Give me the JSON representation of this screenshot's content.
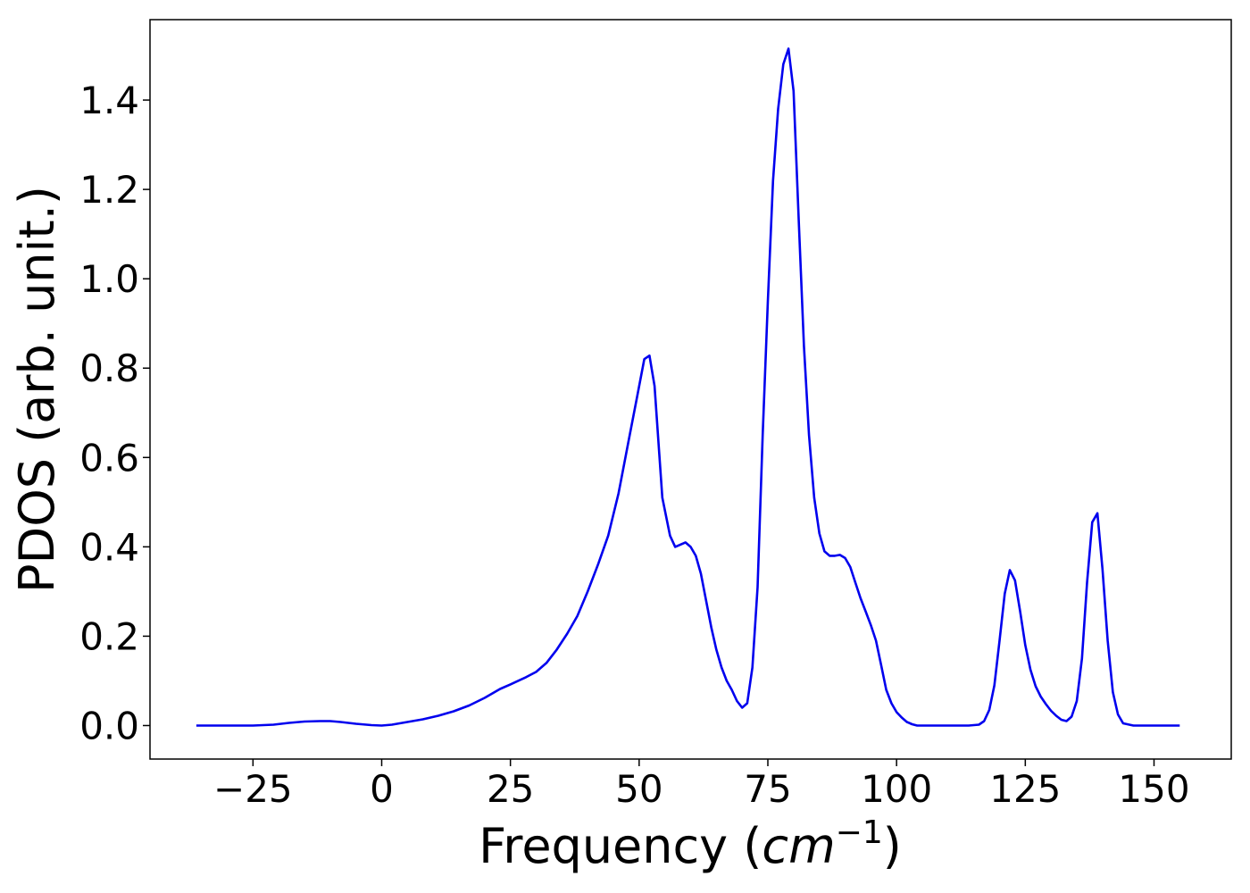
{
  "chart_data": {
    "type": "line",
    "title": "",
    "xlabel": "Frequency (",
    "xlabel_math": "cm",
    "xlabel_exp": "−1",
    "xlabel_close": ")",
    "ylabel": "PDOS (arb. unit.)",
    "xlim": [
      -45,
      165
    ],
    "ylim": [
      -0.075,
      1.58
    ],
    "x_ticks": [
      -25,
      0,
      25,
      50,
      75,
      100,
      125,
      150
    ],
    "x_tick_labels": [
      "−25",
      "0",
      "25",
      "50",
      "75",
      "100",
      "125",
      "150"
    ],
    "y_ticks": [
      0.0,
      0.2,
      0.4,
      0.6,
      0.8,
      1.0,
      1.2,
      1.4
    ],
    "y_tick_labels": [
      "0.0",
      "0.2",
      "0.4",
      "0.6",
      "0.8",
      "1.0",
      "1.2",
      "1.4"
    ],
    "grid": false,
    "legend": "none",
    "series": [
      {
        "color": "#0000ee",
        "x": [
          -36,
          -30,
          -25,
          -21,
          -18,
          -15,
          -12,
          -10,
          -8,
          -5,
          -2,
          0,
          2,
          5,
          8,
          11,
          14,
          17,
          20,
          23,
          25,
          28,
          30,
          32,
          34,
          36,
          38,
          40,
          42,
          44,
          46,
          48,
          49.5,
          51,
          52,
          53,
          54.5,
          56,
          57,
          58,
          59,
          60,
          61,
          62,
          63,
          64,
          65,
          66,
          67,
          68,
          69,
          70,
          71,
          72,
          73,
          74,
          75,
          76,
          77,
          78,
          79,
          80,
          81,
          82,
          83,
          84,
          85,
          86,
          87,
          88,
          89,
          90,
          91,
          92,
          93,
          94,
          95,
          96,
          97,
          98,
          99,
          100,
          101,
          102,
          103,
          104,
          106,
          110,
          114,
          116,
          117,
          118,
          119,
          120,
          121,
          122,
          123,
          124,
          125,
          126,
          127,
          128,
          129,
          130,
          131,
          132,
          133,
          134,
          135,
          136,
          137,
          138,
          139,
          140,
          141,
          142,
          143,
          144,
          146,
          150,
          155
        ],
        "y": [
          0.0,
          0.0,
          0.0,
          0.002,
          0.006,
          0.009,
          0.01,
          0.01,
          0.008,
          0.004,
          0.001,
          0.0,
          0.002,
          0.008,
          0.014,
          0.022,
          0.032,
          0.045,
          0.062,
          0.082,
          0.092,
          0.108,
          0.12,
          0.14,
          0.17,
          0.205,
          0.245,
          0.3,
          0.36,
          0.425,
          0.52,
          0.64,
          0.73,
          0.82,
          0.828,
          0.76,
          0.51,
          0.425,
          0.4,
          0.405,
          0.41,
          0.4,
          0.38,
          0.34,
          0.28,
          0.22,
          0.17,
          0.13,
          0.1,
          0.08,
          0.055,
          0.04,
          0.05,
          0.13,
          0.31,
          0.65,
          0.95,
          1.22,
          1.38,
          1.48,
          1.515,
          1.42,
          1.13,
          0.85,
          0.65,
          0.51,
          0.43,
          0.39,
          0.38,
          0.38,
          0.382,
          0.375,
          0.355,
          0.32,
          0.285,
          0.255,
          0.225,
          0.19,
          0.135,
          0.08,
          0.05,
          0.03,
          0.018,
          0.008,
          0.003,
          0.0,
          0.0,
          0.0,
          0.0,
          0.002,
          0.01,
          0.035,
          0.09,
          0.19,
          0.295,
          0.348,
          0.325,
          0.255,
          0.18,
          0.125,
          0.088,
          0.065,
          0.048,
          0.033,
          0.022,
          0.013,
          0.01,
          0.02,
          0.055,
          0.15,
          0.32,
          0.455,
          0.475,
          0.35,
          0.19,
          0.075,
          0.025,
          0.005,
          0.0,
          0.0,
          0.0
        ]
      }
    ]
  }
}
